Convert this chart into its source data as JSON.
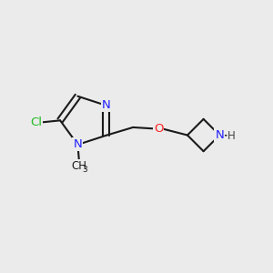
{
  "background_color": "#ebebeb",
  "bond_color": "#1a1a1a",
  "atom_colors": {
    "N": "#2020ff",
    "O": "#ff2020",
    "Cl": "#22bb22",
    "C": "#1a1a1a",
    "H": "#777777"
  },
  "lw": 1.5
}
